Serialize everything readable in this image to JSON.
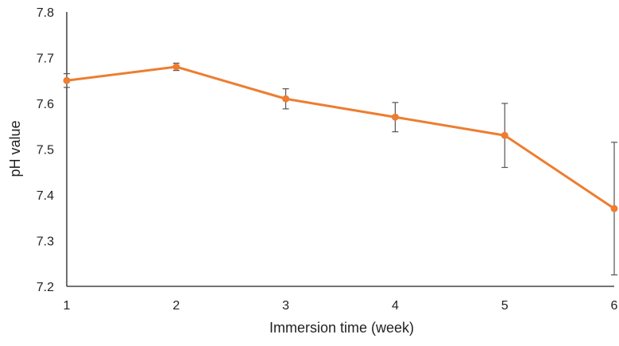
{
  "chart_data": {
    "type": "line",
    "title": "",
    "xlabel": "Immersion time (week)",
    "ylabel": "pH value",
    "x": [
      1,
      2,
      3,
      4,
      5,
      6
    ],
    "xlim": [
      1,
      6
    ],
    "ylim": [
      7.2,
      7.8
    ],
    "x_ticks": [
      "1",
      "2",
      "3",
      "4",
      "5",
      "6"
    ],
    "y_ticks": [
      "7.2",
      "7.3",
      "7.4",
      "7.5",
      "7.6",
      "7.7",
      "7.8"
    ],
    "grid": false,
    "legend": "none",
    "series": [
      {
        "values": [
          7.65,
          7.68,
          7.61,
          7.57,
          7.53,
          7.37
        ],
        "error": [
          0.015,
          0.008,
          0.022,
          0.032,
          0.07,
          0.145
        ],
        "color": "#ED7D31"
      }
    ],
    "colors": {
      "axis": "#222222",
      "error_bar": "#555555"
    }
  }
}
